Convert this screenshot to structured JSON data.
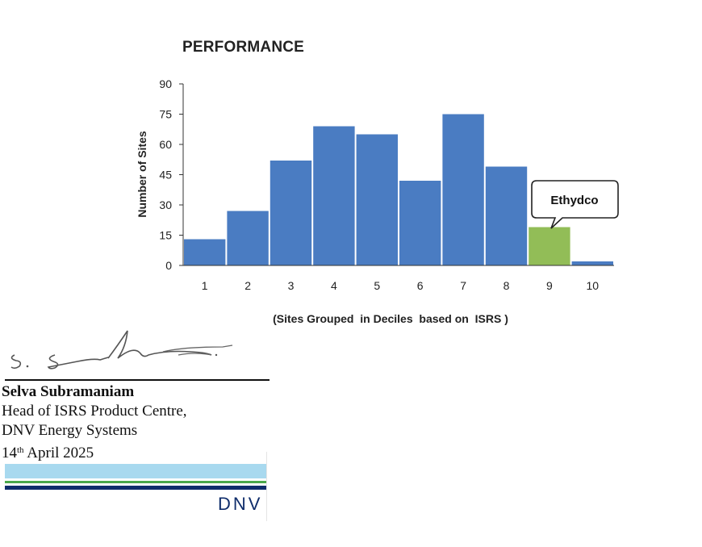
{
  "chart_data": {
    "type": "bar",
    "title": "PERFORMANCE",
    "xlabel": "(Sites Grouped  in Deciles  based on  ISRS )",
    "ylabel": "Number of Sites",
    "categories": [
      "1",
      "2",
      "3",
      "4",
      "5",
      "6",
      "7",
      "8",
      "9",
      "10"
    ],
    "values": [
      13,
      27,
      52,
      69,
      65,
      42,
      75,
      49,
      19,
      2
    ],
    "yticks": [
      "0",
      "15",
      "30",
      "45",
      "60",
      "75",
      "90"
    ],
    "ylim": [
      0,
      90
    ],
    "grid": false,
    "highlight_index": 8,
    "bar_color": "#4a7cc2",
    "highlight_color": "#92bd57",
    "annotation": "Ethydco"
  },
  "signature": {
    "name": "Selva Subramaniam",
    "role": "Head of ISRS Product Centre,",
    "organization": "DNV Energy Systems",
    "date_day": "14",
    "date_suffix": "th",
    "date_rest": " April 2025"
  },
  "logo": {
    "text": "DNV"
  }
}
